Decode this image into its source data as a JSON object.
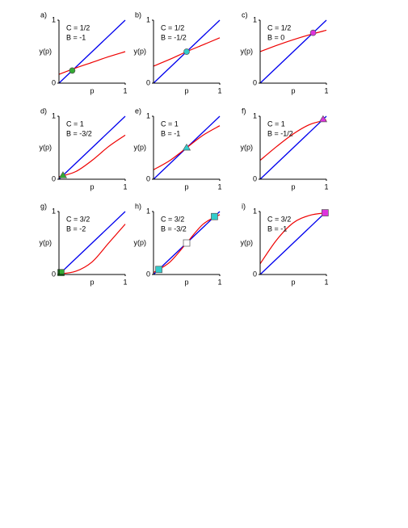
{
  "chart_data": [
    {
      "type": "line",
      "panel": "a)",
      "annotations": [
        "C = 1/2",
        "B = -1"
      ],
      "xlabel": "p",
      "ylabel": "y(p)",
      "xlim": [
        0,
        1
      ],
      "ylim": [
        0,
        1
      ],
      "xticks": [
        1
      ],
      "yticks": [
        0,
        1
      ],
      "identity_color": "#0000ee",
      "series": [
        {
          "color": "#ee0000",
          "x": [
            0,
            0.25,
            0.5,
            0.75,
            1
          ],
          "values": [
            0.14,
            0.24,
            0.33,
            0.42,
            0.5
          ]
        }
      ],
      "markers": [
        {
          "shape": "circle",
          "color": "#33aa33",
          "x": 0.2,
          "y": 0.2
        }
      ]
    },
    {
      "type": "line",
      "panel": "b)",
      "annotations": [
        "C = 1/2",
        "B = -1/2"
      ],
      "xlabel": "p",
      "ylabel": "y(p)",
      "xlim": [
        0,
        1
      ],
      "ylim": [
        0,
        1
      ],
      "xticks": [
        1
      ],
      "yticks": [
        0,
        1
      ],
      "identity_color": "#0000ee",
      "series": [
        {
          "color": "#ee0000",
          "x": [
            0,
            0.25,
            0.5,
            0.75,
            1
          ],
          "values": [
            0.27,
            0.38,
            0.5,
            0.61,
            0.72
          ]
        }
      ],
      "markers": [
        {
          "shape": "circle",
          "color": "#33cccc",
          "x": 0.5,
          "y": 0.5
        }
      ]
    },
    {
      "type": "line",
      "panel": "c)",
      "annotations": [
        "C = 1/2",
        "B = 0"
      ],
      "xlabel": "p",
      "ylabel": "y(p)",
      "xlim": [
        0,
        1
      ],
      "ylim": [
        0,
        1
      ],
      "xticks": [
        1
      ],
      "yticks": [
        0,
        1
      ],
      "identity_color": "#0000ee",
      "series": [
        {
          "color": "#ee0000",
          "x": [
            0,
            0.25,
            0.5,
            0.75,
            1
          ],
          "values": [
            0.5,
            0.6,
            0.69,
            0.77,
            0.84
          ]
        }
      ],
      "markers": [
        {
          "shape": "circle",
          "color": "#dd33dd",
          "x": 0.8,
          "y": 0.8
        }
      ]
    },
    {
      "type": "line",
      "panel": "d)",
      "annotations": [
        "C = 1",
        "B = -3/2"
      ],
      "xlabel": "p",
      "ylabel": "y(p)",
      "xlim": [
        0,
        1
      ],
      "ylim": [
        0,
        1
      ],
      "xticks": [
        1
      ],
      "yticks": [
        0,
        1
      ],
      "identity_color": "#0000ee",
      "series": [
        {
          "color": "#ee0000",
          "x": [
            0,
            0.25,
            0.5,
            0.75,
            1
          ],
          "values": [
            0.04,
            0.12,
            0.3,
            0.52,
            0.7
          ]
        }
      ],
      "markers": [
        {
          "shape": "triangle",
          "color": "#33aa33",
          "x": 0.06,
          "y": 0.06
        }
      ]
    },
    {
      "type": "line",
      "panel": "e)",
      "annotations": [
        "C = 1",
        "B = -1"
      ],
      "xlabel": "p",
      "ylabel": "y(p)",
      "xlim": [
        0,
        1
      ],
      "ylim": [
        0,
        1
      ],
      "xticks": [
        1
      ],
      "yticks": [
        0,
        1
      ],
      "identity_color": "#0000ee",
      "series": [
        {
          "color": "#ee0000",
          "x": [
            0,
            0.25,
            0.5,
            0.75,
            1
          ],
          "values": [
            0.15,
            0.3,
            0.5,
            0.7,
            0.85
          ]
        }
      ],
      "markers": [
        {
          "shape": "triangle",
          "color": "#33cccc",
          "x": 0.5,
          "y": 0.5
        }
      ]
    },
    {
      "type": "line",
      "panel": "f)",
      "annotations": [
        "C = 1",
        "B = -1/2"
      ],
      "xlabel": "p",
      "ylabel": "y(p)",
      "xlim": [
        0,
        1
      ],
      "ylim": [
        0,
        1
      ],
      "xticks": [
        1
      ],
      "yticks": [
        0,
        1
      ],
      "identity_color": "#0000ee",
      "series": [
        {
          "color": "#ee0000",
          "x": [
            0,
            0.25,
            0.5,
            0.75,
            1
          ],
          "values": [
            0.3,
            0.52,
            0.72,
            0.87,
            0.94
          ]
        }
      ],
      "markers": [
        {
          "shape": "triangle",
          "color": "#dd33dd",
          "x": 0.95,
          "y": 0.95
        }
      ]
    },
    {
      "type": "line",
      "panel": "g)",
      "annotations": [
        "C = 3/2",
        "B = -2"
      ],
      "xlabel": "p",
      "ylabel": "y(p)",
      "xlim": [
        0,
        1
      ],
      "ylim": [
        0,
        1
      ],
      "xticks": [
        1
      ],
      "yticks": [
        0,
        1
      ],
      "identity_color": "#0000ee",
      "series": [
        {
          "color": "#ee0000",
          "x": [
            0,
            0.25,
            0.5,
            0.75,
            1
          ],
          "values": [
            0.01,
            0.05,
            0.2,
            0.5,
            0.8
          ]
        }
      ],
      "markers": [
        {
          "shape": "square",
          "color": "#33aa33",
          "x": 0.03,
          "y": 0.03
        }
      ]
    },
    {
      "type": "line",
      "panel": "h)",
      "annotations": [
        "C = 3/2",
        "B = -3/2"
      ],
      "xlabel": "p",
      "ylabel": "y(p)",
      "xlim": [
        0,
        1
      ],
      "ylim": [
        0,
        1
      ],
      "xticks": [
        1
      ],
      "yticks": [
        0,
        1
      ],
      "identity_color": "#0000ee",
      "series": [
        {
          "color": "#ee0000",
          "x": [
            0,
            0.25,
            0.5,
            0.75,
            1
          ],
          "values": [
            0.03,
            0.2,
            0.5,
            0.8,
            0.95
          ]
        }
      ],
      "markers": [
        {
          "shape": "square",
          "color": "#33cccc",
          "x": 0.08,
          "y": 0.08
        },
        {
          "shape": "square",
          "color": "#ffffff",
          "x": 0.5,
          "y": 0.5
        },
        {
          "shape": "square",
          "color": "#33cccc",
          "x": 0.92,
          "y": 0.92
        }
      ]
    },
    {
      "type": "line",
      "panel": "i)",
      "annotations": [
        "C = 3/2",
        "B = -1"
      ],
      "xlabel": "p",
      "ylabel": "y(p)",
      "xlim": [
        0,
        1
      ],
      "ylim": [
        0,
        1
      ],
      "xticks": [
        1
      ],
      "yticks": [
        0,
        1
      ],
      "identity_color": "#0000ee",
      "series": [
        {
          "color": "#ee0000",
          "x": [
            0,
            0.25,
            0.5,
            0.75,
            1
          ],
          "values": [
            0.17,
            0.55,
            0.82,
            0.94,
            0.98
          ]
        }
      ],
      "markers": [
        {
          "shape": "square",
          "color": "#dd33dd",
          "x": 0.98,
          "y": 0.98
        }
      ]
    }
  ]
}
